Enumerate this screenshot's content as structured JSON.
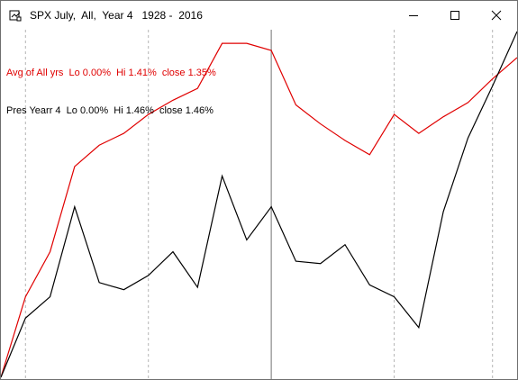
{
  "window": {
    "title": "SPX July,  All,  Year 4   1928 -  2016",
    "icon": "chart-window-icon",
    "buttons": [
      "minimize-icon",
      "maximize-icon",
      "close-icon"
    ]
  },
  "legend": {
    "avg": "Avg of All yrs  Lo 0.00%  Hi 1.41%  close 1.35%",
    "pres": "Pres Yearr 4  Lo 0.00%  Hi 1.46%  close 1.46%"
  },
  "colors": {
    "avg_line": "#e00000",
    "pres_line": "#000000",
    "gridline": "#b4b4b4",
    "midline": "#a0a0a0"
  },
  "chart_data": {
    "type": "line",
    "title": "SPX July,  All,  Year 4   1928 -  2016",
    "x": [
      0,
      1,
      2,
      3,
      4,
      5,
      6,
      7,
      8,
      9,
      10,
      11,
      12,
      13,
      14,
      15,
      16,
      17,
      18,
      19,
      20,
      21
    ],
    "series": [
      {
        "name": "Avg of All yrs",
        "values": [
          0.0,
          0.34,
          0.53,
          0.89,
          0.98,
          1.03,
          1.11,
          1.17,
          1.22,
          1.41,
          1.41,
          1.38,
          1.15,
          1.07,
          1.0,
          0.94,
          1.11,
          1.03,
          1.1,
          1.16,
          1.26,
          1.35
        ]
      },
      {
        "name": "Pres Yearr 4",
        "values": [
          0.0,
          0.25,
          0.34,
          0.72,
          0.4,
          0.37,
          0.43,
          0.53,
          0.38,
          0.85,
          0.58,
          0.72,
          0.49,
          0.48,
          0.56,
          0.39,
          0.34,
          0.21,
          0.7,
          1.01,
          1.23,
          1.46
        ]
      }
    ],
    "ylim": [
      0,
      1.46
    ],
    "xlim": [
      0,
      21
    ],
    "grid": "dotted-vertical",
    "legend_position": "top-left"
  }
}
